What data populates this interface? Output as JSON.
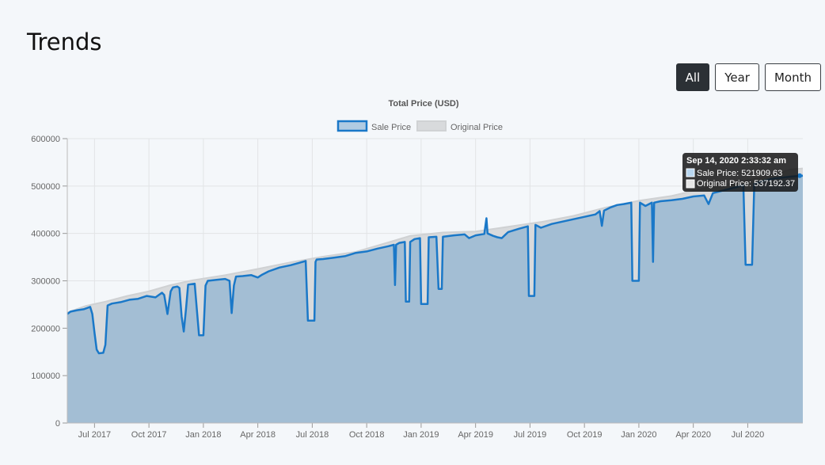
{
  "page": {
    "title": "Trends"
  },
  "range_buttons": [
    {
      "label": "All",
      "active": true
    },
    {
      "label": "Year",
      "active": false
    },
    {
      "label": "Month",
      "active": false
    }
  ],
  "colors": {
    "sale_line": "#1a78c8",
    "sale_fill": "rgba(120,168,205,0.55)",
    "orig_fill": "#d8dadc",
    "grid": "#e2e4e6",
    "tooltip_bg": "rgba(20,20,20,0.85)"
  },
  "chart_data": {
    "type": "area",
    "title": "Total Price (USD)",
    "xlabel": "",
    "ylabel": "",
    "ylim": [
      0,
      600000
    ],
    "y_ticks": [
      0,
      100000,
      200000,
      300000,
      400000,
      500000,
      600000
    ],
    "x_range": [
      2017.375,
      2020.753
    ],
    "x_ticks": [
      {
        "t": 2017.5,
        "label": "Jul 2017"
      },
      {
        "t": 2017.75,
        "label": "Oct 2017"
      },
      {
        "t": 2018.0,
        "label": "Jan 2018"
      },
      {
        "t": 2018.25,
        "label": "Apr 2018"
      },
      {
        "t": 2018.5,
        "label": "Jul 2018"
      },
      {
        "t": 2018.75,
        "label": "Oct 2018"
      },
      {
        "t": 2019.0,
        "label": "Jan 2019"
      },
      {
        "t": 2019.25,
        "label": "Apr 2019"
      },
      {
        "t": 2019.5,
        "label": "Jul 2019"
      },
      {
        "t": 2019.75,
        "label": "Oct 2019"
      },
      {
        "t": 2020.0,
        "label": "Jan 2020"
      },
      {
        "t": 2020.25,
        "label": "Apr 2020"
      },
      {
        "t": 2020.5,
        "label": "Jul 2020"
      }
    ],
    "legend": {
      "position": "top",
      "entries": [
        "Sale Price",
        "Original Price"
      ]
    },
    "series": [
      {
        "name": "Original Price",
        "points": [
          [
            2017.375,
            233000
          ],
          [
            2017.46,
            247000
          ],
          [
            2017.55,
            256000
          ],
          [
            2017.65,
            268000
          ],
          [
            2017.75,
            278000
          ],
          [
            2017.85,
            291000
          ],
          [
            2017.95,
            301000
          ],
          [
            2018.1,
            312000
          ],
          [
            2018.25,
            325000
          ],
          [
            2018.4,
            339000
          ],
          [
            2018.55,
            351000
          ],
          [
            2018.7,
            361000
          ],
          [
            2018.85,
            381000
          ],
          [
            2018.95,
            395000
          ],
          [
            2019.1,
            402000
          ],
          [
            2019.25,
            404000
          ],
          [
            2019.4,
            414000
          ],
          [
            2019.55,
            424000
          ],
          [
            2019.7,
            437000
          ],
          [
            2019.85,
            455000
          ],
          [
            2020.0,
            469000
          ],
          [
            2020.15,
            479000
          ],
          [
            2020.3,
            495000
          ],
          [
            2020.45,
            507000
          ],
          [
            2020.6,
            522000
          ],
          [
            2020.7,
            535000
          ],
          [
            2020.753,
            537192
          ]
        ]
      },
      {
        "name": "Sale Price",
        "points": [
          [
            2017.375,
            230000
          ],
          [
            2017.39,
            235000
          ],
          [
            2017.42,
            238000
          ],
          [
            2017.45,
            240000
          ],
          [
            2017.48,
            245000
          ],
          [
            2017.49,
            230000
          ],
          [
            2017.5,
            190000
          ],
          [
            2017.51,
            155000
          ],
          [
            2017.52,
            147000
          ],
          [
            2017.54,
            148000
          ],
          [
            2017.55,
            165000
          ],
          [
            2017.56,
            248000
          ],
          [
            2017.58,
            252000
          ],
          [
            2017.62,
            255000
          ],
          [
            2017.66,
            260000
          ],
          [
            2017.7,
            262000
          ],
          [
            2017.74,
            268000
          ],
          [
            2017.78,
            265000
          ],
          [
            2017.81,
            275000
          ],
          [
            2017.82,
            270000
          ],
          [
            2017.835,
            230000
          ],
          [
            2017.85,
            278000
          ],
          [
            2017.86,
            286000
          ],
          [
            2017.88,
            288000
          ],
          [
            2017.89,
            285000
          ],
          [
            2017.9,
            225000
          ],
          [
            2017.91,
            193000
          ],
          [
            2017.92,
            240000
          ],
          [
            2017.93,
            292000
          ],
          [
            2017.96,
            294000
          ],
          [
            2017.97,
            240000
          ],
          [
            2017.98,
            185000
          ],
          [
            2018.0,
            185000
          ],
          [
            2018.01,
            290000
          ],
          [
            2018.02,
            300000
          ],
          [
            2018.06,
            302000
          ],
          [
            2018.1,
            304000
          ],
          [
            2018.12,
            300000
          ],
          [
            2018.13,
            232000
          ],
          [
            2018.14,
            290000
          ],
          [
            2018.15,
            309000
          ],
          [
            2018.18,
            310000
          ],
          [
            2018.22,
            312000
          ],
          [
            2018.25,
            307000
          ],
          [
            2018.27,
            313000
          ],
          [
            2018.3,
            320000
          ],
          [
            2018.35,
            328000
          ],
          [
            2018.4,
            333000
          ],
          [
            2018.44,
            338000
          ],
          [
            2018.47,
            342000
          ],
          [
            2018.48,
            216000
          ],
          [
            2018.51,
            216000
          ],
          [
            2018.515,
            340000
          ],
          [
            2018.52,
            345000
          ],
          [
            2018.55,
            346000
          ],
          [
            2018.6,
            349000
          ],
          [
            2018.65,
            352000
          ],
          [
            2018.7,
            359000
          ],
          [
            2018.75,
            362000
          ],
          [
            2018.8,
            368000
          ],
          [
            2018.85,
            373000
          ],
          [
            2018.875,
            376000
          ],
          [
            2018.88,
            291000
          ],
          [
            2018.885,
            376000
          ],
          [
            2018.9,
            380000
          ],
          [
            2018.925,
            382000
          ],
          [
            2018.93,
            256000
          ],
          [
            2018.945,
            256000
          ],
          [
            2018.95,
            382000
          ],
          [
            2018.97,
            388000
          ],
          [
            2018.995,
            390000
          ],
          [
            2019.0,
            251000
          ],
          [
            2019.03,
            251000
          ],
          [
            2019.035,
            392000
          ],
          [
            2019.07,
            393000
          ],
          [
            2019.08,
            283000
          ],
          [
            2019.095,
            283000
          ],
          [
            2019.1,
            393000
          ],
          [
            2019.15,
            396000
          ],
          [
            2019.2,
            398000
          ],
          [
            2019.22,
            390000
          ],
          [
            2019.25,
            396000
          ],
          [
            2019.29,
            399000
          ],
          [
            2019.3,
            432000
          ],
          [
            2019.305,
            400000
          ],
          [
            2019.33,
            395000
          ],
          [
            2019.35,
            392000
          ],
          [
            2019.37,
            390000
          ],
          [
            2019.4,
            403000
          ],
          [
            2019.45,
            410000
          ],
          [
            2019.49,
            415000
          ],
          [
            2019.495,
            268000
          ],
          [
            2019.52,
            268000
          ],
          [
            2019.525,
            418000
          ],
          [
            2019.55,
            412000
          ],
          [
            2019.6,
            420000
          ],
          [
            2019.65,
            425000
          ],
          [
            2019.7,
            430000
          ],
          [
            2019.75,
            435000
          ],
          [
            2019.8,
            440000
          ],
          [
            2019.82,
            447000
          ],
          [
            2019.83,
            416000
          ],
          [
            2019.84,
            448000
          ],
          [
            2019.87,
            455000
          ],
          [
            2019.9,
            460000
          ],
          [
            2019.93,
            462000
          ],
          [
            2019.965,
            465000
          ],
          [
            2019.97,
            300000
          ],
          [
            2020.0,
            300000
          ],
          [
            2020.005,
            465000
          ],
          [
            2020.03,
            458000
          ],
          [
            2020.06,
            465000
          ],
          [
            2020.065,
            340000
          ],
          [
            2020.07,
            465000
          ],
          [
            2020.1,
            468000
          ],
          [
            2020.15,
            470000
          ],
          [
            2020.2,
            473000
          ],
          [
            2020.25,
            478000
          ],
          [
            2020.3,
            480000
          ],
          [
            2020.32,
            462000
          ],
          [
            2020.34,
            485000
          ],
          [
            2020.4,
            492000
          ],
          [
            2020.45,
            498000
          ],
          [
            2020.48,
            502000
          ],
          [
            2020.49,
            334000
          ],
          [
            2020.52,
            334000
          ],
          [
            2020.53,
            505000
          ],
          [
            2020.58,
            512000
          ],
          [
            2020.62,
            516000
          ],
          [
            2020.66,
            518000
          ],
          [
            2020.7,
            520000
          ],
          [
            2020.753,
            521910
          ]
        ]
      }
    ],
    "tooltip": {
      "title": "Sep 14, 2020 2:33:32 am",
      "lines": [
        "Sale Price: 521909.63",
        "Original Price: 537192.37"
      ]
    }
  }
}
